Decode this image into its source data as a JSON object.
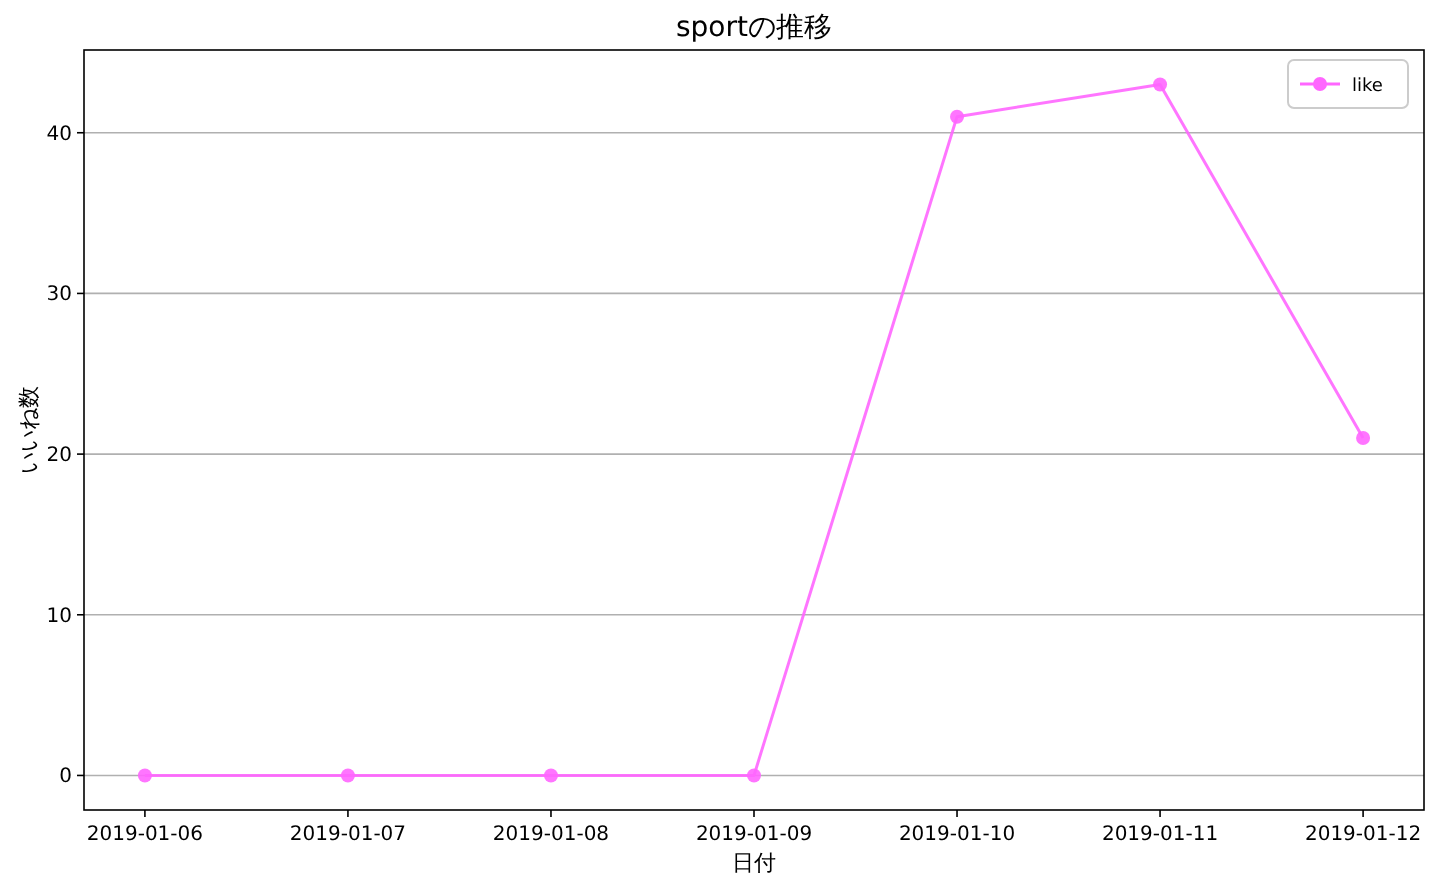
{
  "chart_data": {
    "type": "line",
    "title": "sportの推移",
    "xlabel": "日付",
    "ylabel": "いいね数",
    "x": [
      "2019-01-06",
      "2019-01-07",
      "2019-01-08",
      "2019-01-09",
      "2019-01-10",
      "2019-01-11",
      "2019-01-12"
    ],
    "series": [
      {
        "name": "like",
        "color": "#ff66ff",
        "values": [
          0,
          0,
          0,
          0,
          41,
          43,
          21
        ]
      }
    ],
    "xlim": [
      "2019-01-05T16:48",
      "2019-01-12T07:12"
    ],
    "xticks": [
      "2019-01-06",
      "2019-01-07",
      "2019-01-08",
      "2019-01-09",
      "2019-01-10",
      "2019-01-11",
      "2019-01-12"
    ],
    "ylim": [
      -2.15,
      45.15
    ],
    "yticks": [
      0,
      10,
      20,
      30,
      40
    ],
    "grid": "y",
    "legend": "top right",
    "marker": "circle",
    "line_style": "solid"
  }
}
